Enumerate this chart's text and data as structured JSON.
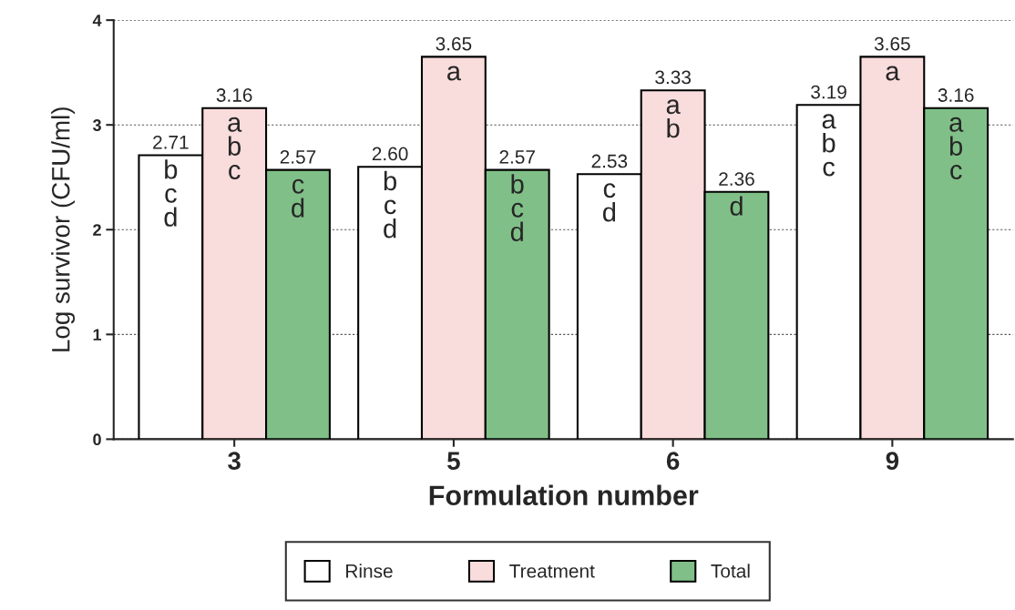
{
  "chart_data": {
    "type": "bar",
    "xlabel": "Formulation number",
    "ylabel": "Log survivor (CFU/ml)",
    "categories": [
      "3",
      "5",
      "6",
      "9"
    ],
    "series": [
      {
        "name": "Rinse",
        "color": "#ffffff",
        "values": [
          2.71,
          2.6,
          2.53,
          3.19
        ],
        "value_labels": [
          "2.71",
          "2.60",
          "2.53",
          "3.19"
        ]
      },
      {
        "name": "Treatment",
        "color": "#f9dcdc",
        "values": [
          3.16,
          3.65,
          3.33,
          3.65
        ],
        "value_labels": [
          "3.16",
          "3.65",
          "3.33",
          "3.65"
        ]
      },
      {
        "name": "Total",
        "color": "#80c088",
        "values": [
          2.57,
          2.57,
          2.36,
          3.16
        ],
        "value_labels": [
          "2.57",
          "2.57",
          "2.36",
          "3.16"
        ]
      }
    ],
    "annotations": [
      "b\nc\nd",
      "a\nb\nc",
      "c\nd",
      "b\nc\nd",
      "a",
      "b\nc\nd",
      "c\nd",
      "a\nb",
      "d",
      "a\nb\nc",
      "a",
      "a\nb\nc"
    ],
    "ylim": [
      0,
      4
    ],
    "yticks": [
      0,
      1,
      2,
      3,
      4
    ],
    "grid": "y",
    "legend": "bottom"
  }
}
